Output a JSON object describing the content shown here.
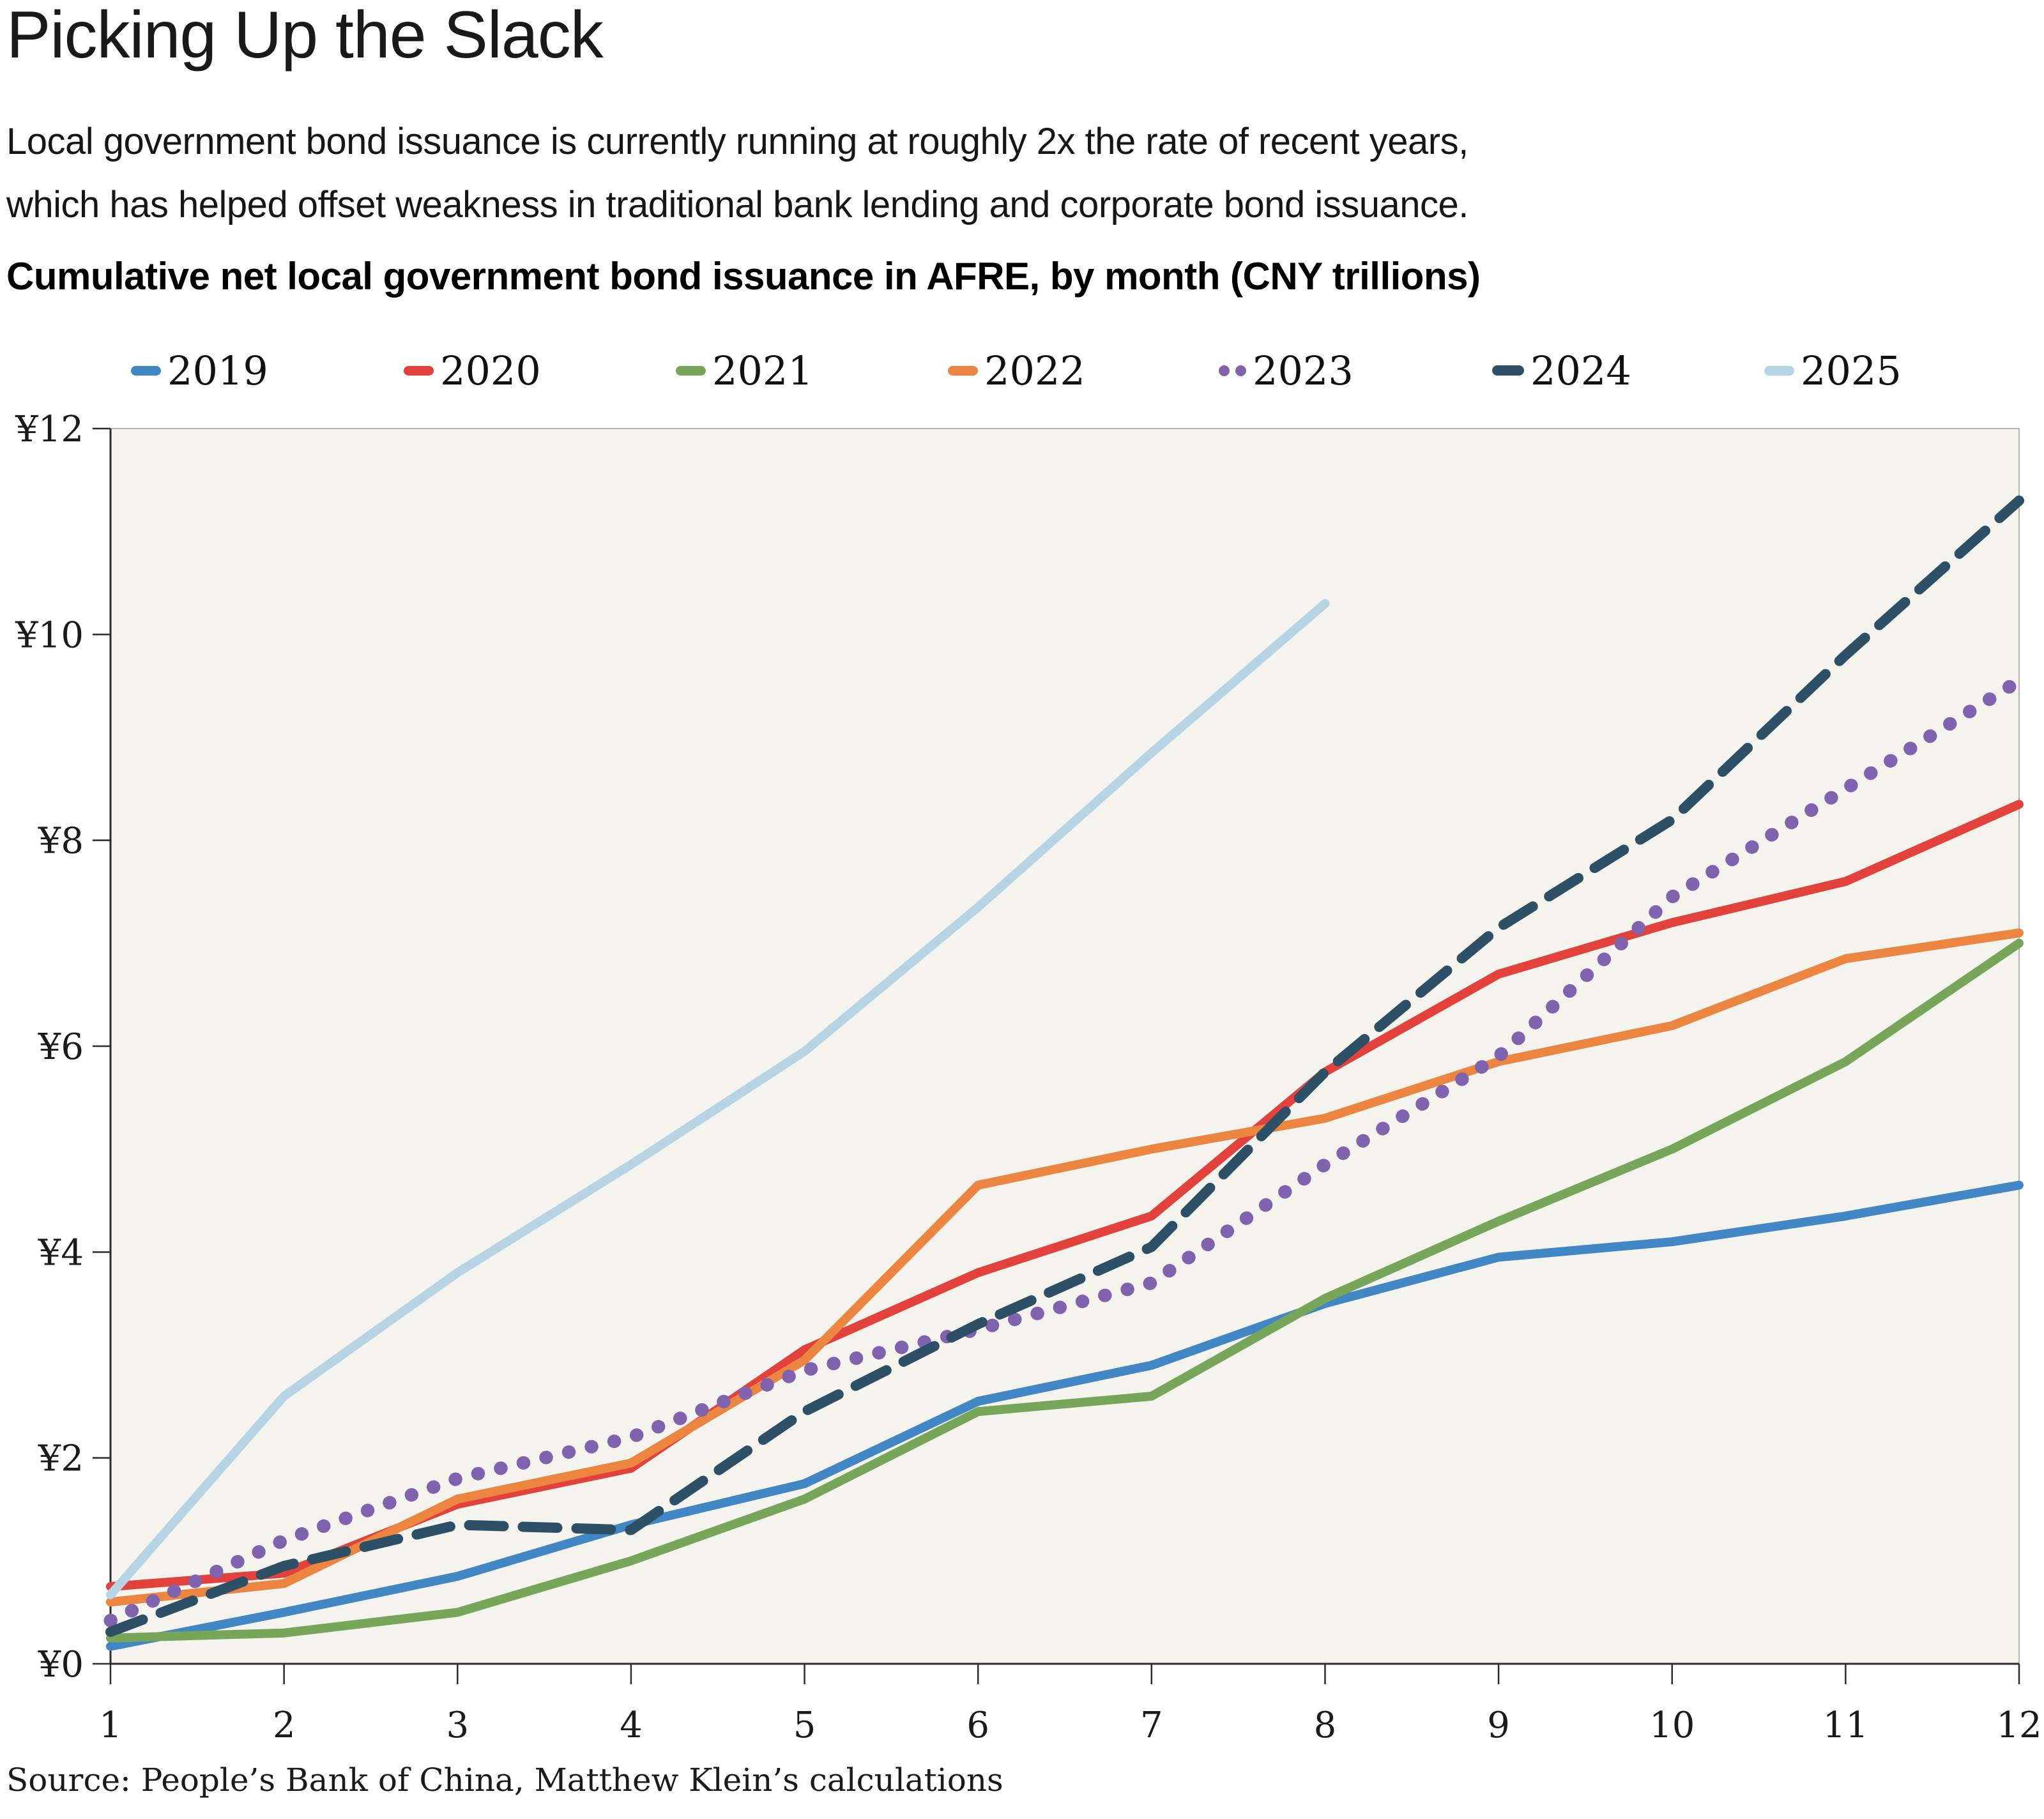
{
  "header": {
    "title": "Picking Up the Slack",
    "subtitle_line1": "Local government bond issuance is currently running at roughly 2x the rate of recent years,",
    "subtitle_line2": "which has helped offset weakness in traditional bank lending and corporate bond issuance.",
    "chart_heading": "Cumulative net local government bond issuance in AFRE, by month (CNY trillions)"
  },
  "source": "Source: People’s Bank of China, Matthew Klein’s calculations",
  "colors": {
    "page_bg": "#ffffff",
    "plot_bg": "#f5f3ed",
    "plot_border": "#b9b5ac",
    "axis": "#2b2b2b",
    "text": "#1a1a1a"
  },
  "legend": {
    "item_lefts": [
      205,
      632,
      1058,
      1484,
      1908,
      2336,
      2762
    ]
  },
  "chart_data": {
    "type": "line",
    "title": "Cumulative net local government bond issuance in AFRE, by month (CNY trillions)",
    "xlabel": "",
    "ylabel": "",
    "x": [
      1,
      2,
      3,
      4,
      5,
      6,
      7,
      8,
      9,
      10,
      11,
      12
    ],
    "ylim": [
      0,
      12
    ],
    "y_ticks": [
      0,
      2,
      4,
      6,
      8,
      10,
      12
    ],
    "y_tick_prefix": "¥",
    "grid": false,
    "legend_position": "top",
    "series": [
      {
        "name": "2019",
        "color": "#4186c5",
        "style": "solid",
        "values": [
          0.17,
          0.5,
          0.85,
          1.35,
          1.75,
          2.55,
          2.9,
          3.5,
          3.95,
          4.1,
          4.35,
          4.65
        ]
      },
      {
        "name": "2020",
        "color": "#e2423b",
        "style": "solid",
        "values": [
          0.75,
          0.88,
          1.55,
          1.9,
          3.05,
          3.8,
          4.35,
          5.75,
          6.7,
          7.2,
          7.6,
          8.35
        ]
      },
      {
        "name": "2021",
        "color": "#77a65a",
        "style": "solid",
        "values": [
          0.25,
          0.3,
          0.5,
          1.0,
          1.6,
          2.45,
          2.6,
          3.55,
          4.3,
          5.0,
          5.85,
          7.0
        ]
      },
      {
        "name": "2022",
        "color": "#ec8540",
        "style": "solid",
        "values": [
          0.6,
          0.78,
          1.6,
          1.95,
          2.95,
          4.65,
          5.0,
          5.3,
          5.85,
          6.2,
          6.85,
          7.1
        ]
      },
      {
        "name": "2023",
        "color": "#7f63ae",
        "style": "dotted",
        "values": [
          0.42,
          1.2,
          1.8,
          2.2,
          2.85,
          3.25,
          3.7,
          4.85,
          5.9,
          7.45,
          8.5,
          9.55
        ]
      },
      {
        "name": "2024",
        "color": "#2d5066",
        "style": "dashed",
        "values": [
          0.31,
          0.95,
          1.35,
          1.3,
          2.45,
          3.3,
          4.05,
          5.75,
          7.15,
          8.2,
          9.8,
          11.3
        ]
      },
      {
        "name": "2025",
        "color": "#b7d4e4",
        "style": "solid",
        "values": [
          0.67,
          2.6,
          3.8,
          4.85,
          5.95,
          7.35,
          8.85,
          10.3
        ]
      }
    ]
  }
}
